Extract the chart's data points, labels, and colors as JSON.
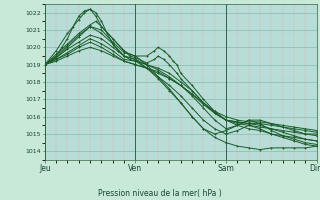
{
  "xlabel": "Pression niveau de la mer( hPa )",
  "ylim": [
    1013.5,
    1022.5
  ],
  "yticks": [
    1014,
    1015,
    1016,
    1017,
    1018,
    1019,
    1020,
    1021,
    1022
  ],
  "xtick_labels": [
    "Jeu",
    "Ven",
    "Sam",
    "Dim"
  ],
  "xtick_positions": [
    0,
    48,
    96,
    144
  ],
  "bg_color": "#c8e8d8",
  "plot_bg_color": "#b8ddd8",
  "minor_grid_color": "#e8c0c0",
  "major_grid_color": "#88bbaa",
  "line_color": "#1a5c2a",
  "lines": [
    [
      0,
      1019.0,
      3,
      1019.2,
      6,
      1019.5,
      9,
      1020.0,
      12,
      1020.5,
      15,
      1021.2,
      18,
      1021.8,
      21,
      1022.1,
      24,
      1022.2,
      27,
      1022.0,
      30,
      1021.5,
      33,
      1020.8,
      36,
      1020.2,
      39,
      1019.8,
      42,
      1019.5,
      45,
      1019.3,
      48,
      1019.2,
      54,
      1018.8,
      60,
      1018.2,
      66,
      1017.5,
      72,
      1016.8,
      78,
      1016.0,
      84,
      1015.3,
      90,
      1014.8,
      96,
      1014.5,
      102,
      1014.3,
      108,
      1014.2,
      114,
      1014.1,
      120,
      1014.2,
      126,
      1014.2,
      132,
      1014.2,
      138,
      1014.2,
      144,
      1014.3
    ],
    [
      0,
      1019.0,
      6,
      1019.8,
      12,
      1020.8,
      18,
      1021.6,
      21,
      1022.0,
      24,
      1022.2,
      27,
      1021.8,
      30,
      1021.2,
      36,
      1020.5,
      42,
      1019.8,
      45,
      1019.6,
      48,
      1019.5,
      54,
      1019.0,
      60,
      1018.3,
      66,
      1017.6,
      72,
      1016.8,
      78,
      1016.0,
      84,
      1015.3,
      90,
      1015.0,
      96,
      1015.2,
      102,
      1015.5,
      108,
      1015.8,
      114,
      1015.6,
      120,
      1015.2,
      126,
      1014.9,
      132,
      1014.7,
      138,
      1014.5,
      144,
      1014.4
    ],
    [
      0,
      1019.0,
      6,
      1019.4,
      12,
      1020.0,
      18,
      1020.6,
      24,
      1021.2,
      30,
      1020.8,
      36,
      1020.2,
      42,
      1019.5,
      48,
      1019.3,
      54,
      1018.8,
      60,
      1018.3,
      66,
      1017.8,
      72,
      1017.2,
      78,
      1016.5,
      84,
      1015.8,
      90,
      1015.3,
      96,
      1015.0,
      102,
      1015.2,
      108,
      1015.5,
      114,
      1015.3,
      120,
      1015.0,
      126,
      1014.8,
      132,
      1014.6,
      138,
      1014.4,
      144,
      1014.3
    ],
    [
      0,
      1019.0,
      6,
      1019.3,
      12,
      1019.6,
      18,
      1020.0,
      24,
      1020.3,
      30,
      1020.0,
      36,
      1019.6,
      42,
      1019.2,
      48,
      1019.0,
      54,
      1018.8,
      60,
      1018.6,
      66,
      1018.2,
      72,
      1017.8,
      78,
      1017.2,
      84,
      1016.5,
      90,
      1015.8,
      96,
      1015.3,
      102,
      1015.5,
      108,
      1015.8,
      114,
      1015.8,
      120,
      1015.6,
      126,
      1015.4,
      132,
      1015.2,
      138,
      1015.0,
      144,
      1014.9
    ],
    [
      0,
      1019.0,
      6,
      1019.3,
      12,
      1019.7,
      18,
      1020.1,
      24,
      1020.5,
      30,
      1020.2,
      36,
      1019.8,
      42,
      1019.3,
      48,
      1019.2,
      54,
      1019.0,
      60,
      1018.8,
      66,
      1018.5,
      72,
      1018.0,
      78,
      1017.5,
      84,
      1016.8,
      90,
      1016.2,
      96,
      1015.8,
      102,
      1015.6,
      108,
      1015.5,
      114,
      1015.4,
      120,
      1015.3,
      126,
      1015.2,
      132,
      1015.1,
      138,
      1015.0,
      144,
      1015.0
    ],
    [
      0,
      1019.0,
      6,
      1019.2,
      12,
      1019.5,
      18,
      1019.8,
      24,
      1020.0,
      30,
      1019.8,
      36,
      1019.5,
      42,
      1019.2,
      48,
      1019.0,
      54,
      1018.8,
      60,
      1018.5,
      66,
      1018.2,
      72,
      1017.8,
      78,
      1017.3,
      84,
      1016.8,
      90,
      1016.3,
      96,
      1016.0,
      102,
      1015.8,
      108,
      1015.7,
      114,
      1015.7,
      120,
      1015.6,
      126,
      1015.5,
      132,
      1015.4,
      138,
      1015.3,
      144,
      1015.2
    ],
    [
      0,
      1019.0,
      6,
      1019.4,
      12,
      1019.9,
      18,
      1020.3,
      24,
      1020.7,
      30,
      1020.5,
      36,
      1020.0,
      42,
      1019.5,
      48,
      1019.3,
      54,
      1019.0,
      60,
      1018.7,
      66,
      1018.3,
      72,
      1017.8,
      78,
      1017.3,
      84,
      1016.7,
      90,
      1016.2,
      96,
      1015.8,
      102,
      1015.7,
      108,
      1015.6,
      114,
      1015.6,
      120,
      1015.5,
      126,
      1015.4,
      132,
      1015.3,
      138,
      1015.2,
      144,
      1015.1
    ],
    [
      0,
      1019.0,
      6,
      1019.6,
      12,
      1020.2,
      18,
      1020.8,
      24,
      1021.3,
      27,
      1021.5,
      30,
      1021.2,
      36,
      1020.5,
      42,
      1019.8,
      45,
      1019.5,
      48,
      1019.4,
      54,
      1019.1,
      58,
      1019.3,
      60,
      1019.5,
      63,
      1019.3,
      66,
      1019.0,
      70,
      1018.5,
      72,
      1018.2,
      78,
      1017.5,
      84,
      1016.8,
      90,
      1016.2,
      96,
      1015.8,
      102,
      1015.7,
      108,
      1015.6,
      114,
      1015.5,
      120,
      1015.3,
      126,
      1015.1,
      132,
      1014.9,
      138,
      1014.7,
      144,
      1014.6
    ],
    [
      0,
      1019.0,
      6,
      1019.5,
      12,
      1020.1,
      18,
      1020.7,
      24,
      1021.2,
      30,
      1021.0,
      36,
      1020.3,
      42,
      1019.7,
      48,
      1019.5,
      54,
      1019.5,
      58,
      1019.8,
      60,
      1020.0,
      63,
      1019.8,
      66,
      1019.5,
      68,
      1019.2,
      70,
      1019.0,
      72,
      1018.5,
      78,
      1017.8,
      84,
      1017.0,
      90,
      1016.3,
      96,
      1015.8,
      102,
      1015.5,
      108,
      1015.3,
      114,
      1015.2,
      120,
      1015.0,
      126,
      1014.9,
      132,
      1014.8,
      138,
      1014.7,
      144,
      1014.6
    ]
  ],
  "figsize": [
    3.2,
    2.0
  ],
  "dpi": 100
}
